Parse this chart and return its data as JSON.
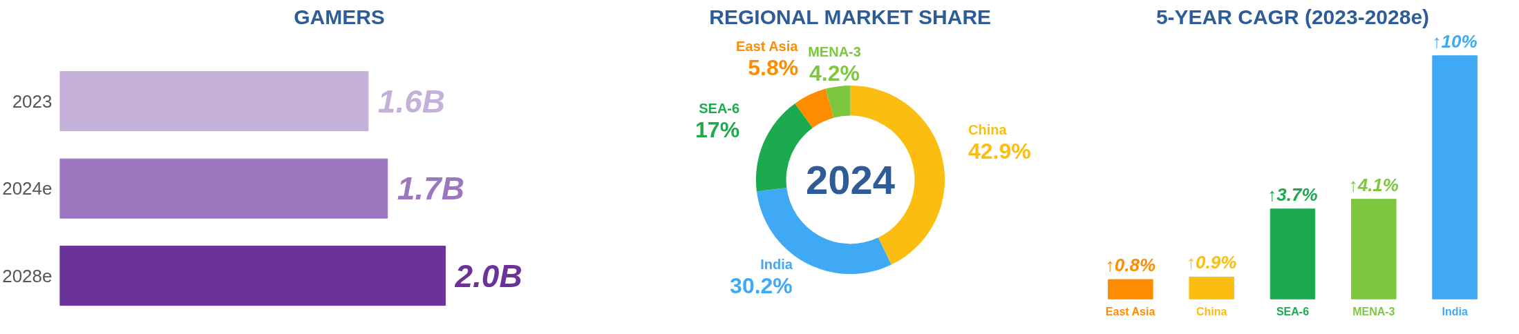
{
  "chart_data": [
    {
      "type": "bar",
      "orientation": "horizontal",
      "title": "GAMERS",
      "categories": [
        "2023",
        "2024e",
        "2028e"
      ],
      "values": [
        1.6,
        1.7,
        2.0
      ],
      "colors": [
        "#c4b0d8",
        "#9b77bf",
        "#6b3398"
      ],
      "value_labels": [
        "1.6B",
        "1.7B",
        "2.0B"
      ]
    },
    {
      "type": "donut",
      "title": "REGIONAL MARKET SHARE",
      "categories": [
        "China",
        "India",
        "SEA-6",
        "East Asia",
        "MENA-3"
      ],
      "values": [
        42.9,
        30.2,
        17,
        5.8,
        4.2
      ],
      "colors": [
        "#fbbd0f",
        "#3fa9f5",
        "#1daa4f",
        "#fd8c00",
        "#7dc73f"
      ],
      "value_labels": [
        "42.9%",
        "30.2%",
        "17%",
        "5.8%",
        "4.2%"
      ],
      "annotations": [
        "2024"
      ]
    },
    {
      "type": "bar",
      "title": "5-YEAR CAGR (2023-2028e)",
      "categories": [
        "East Asia",
        "China",
        "SEA-6",
        "MENA-3",
        "India"
      ],
      "values": [
        0.8,
        0.9,
        3.7,
        4.1,
        10
      ],
      "colors": [
        "#fd8c00",
        "#fbbd0f",
        "#1daa4f",
        "#7dc73f",
        "#3fa9f5"
      ],
      "value_labels": [
        "↑0.8%",
        "↑0.9%",
        "↑3.7%",
        "↑4.1%",
        "↑10%"
      ]
    }
  ]
}
